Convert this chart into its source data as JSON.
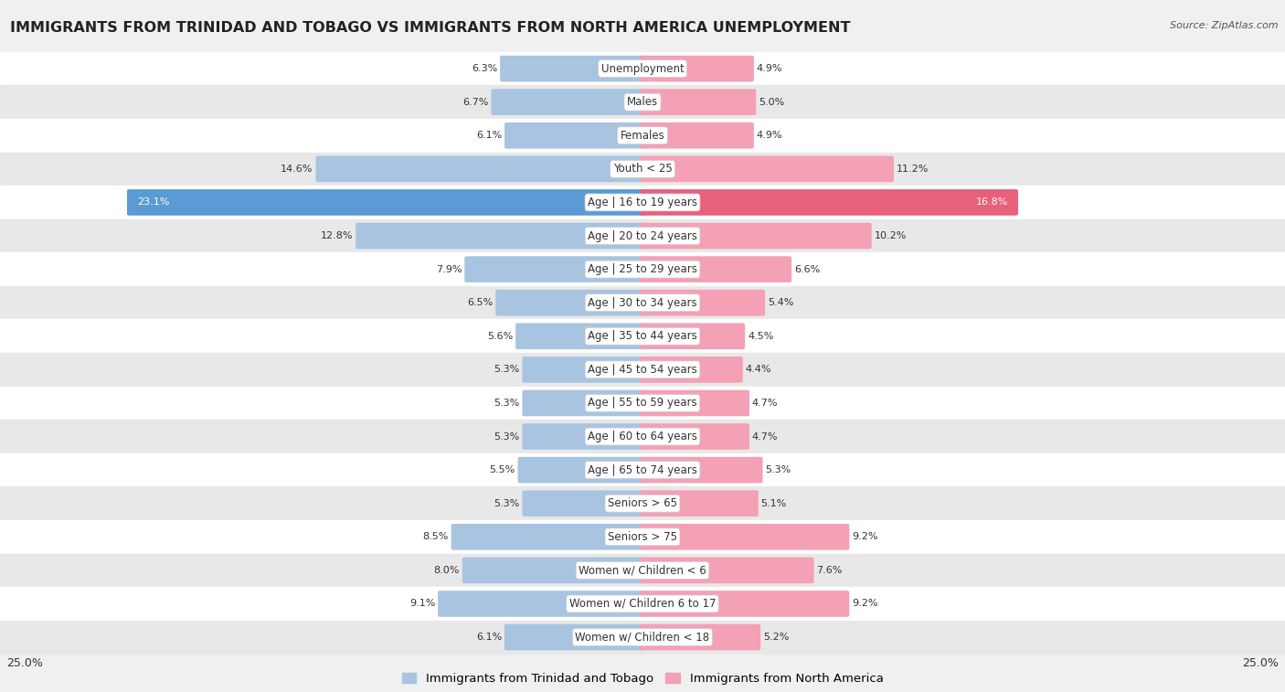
{
  "title": "IMMIGRANTS FROM TRINIDAD AND TOBAGO VS IMMIGRANTS FROM NORTH AMERICA UNEMPLOYMENT",
  "source": "Source: ZipAtlas.com",
  "categories": [
    "Unemployment",
    "Males",
    "Females",
    "Youth < 25",
    "Age | 16 to 19 years",
    "Age | 20 to 24 years",
    "Age | 25 to 29 years",
    "Age | 30 to 34 years",
    "Age | 35 to 44 years",
    "Age | 45 to 54 years",
    "Age | 55 to 59 years",
    "Age | 60 to 64 years",
    "Age | 65 to 74 years",
    "Seniors > 65",
    "Seniors > 75",
    "Women w/ Children < 6",
    "Women w/ Children 6 to 17",
    "Women w/ Children < 18"
  ],
  "left_values": [
    6.3,
    6.7,
    6.1,
    14.6,
    23.1,
    12.8,
    7.9,
    6.5,
    5.6,
    5.3,
    5.3,
    5.3,
    5.5,
    5.3,
    8.5,
    8.0,
    9.1,
    6.1
  ],
  "right_values": [
    4.9,
    5.0,
    4.9,
    11.2,
    16.8,
    10.2,
    6.6,
    5.4,
    4.5,
    4.4,
    4.7,
    4.7,
    5.3,
    5.1,
    9.2,
    7.6,
    9.2,
    5.2
  ],
  "left_color": "#a8c4e0",
  "right_color": "#f4a0b5",
  "highlight_left_color": "#5b9bd5",
  "highlight_right_color": "#e8607a",
  "highlight_row": 4,
  "row_bg_odd": "#ffffff",
  "row_bg_even": "#e8e8e8",
  "axis_max": 25.0,
  "legend_left": "Immigrants from Trinidad and Tobago",
  "legend_right": "Immigrants from North America",
  "title_fontsize": 11.5,
  "label_fontsize": 8.5,
  "value_fontsize": 8.0,
  "fig_bg": "#f0f0f0"
}
